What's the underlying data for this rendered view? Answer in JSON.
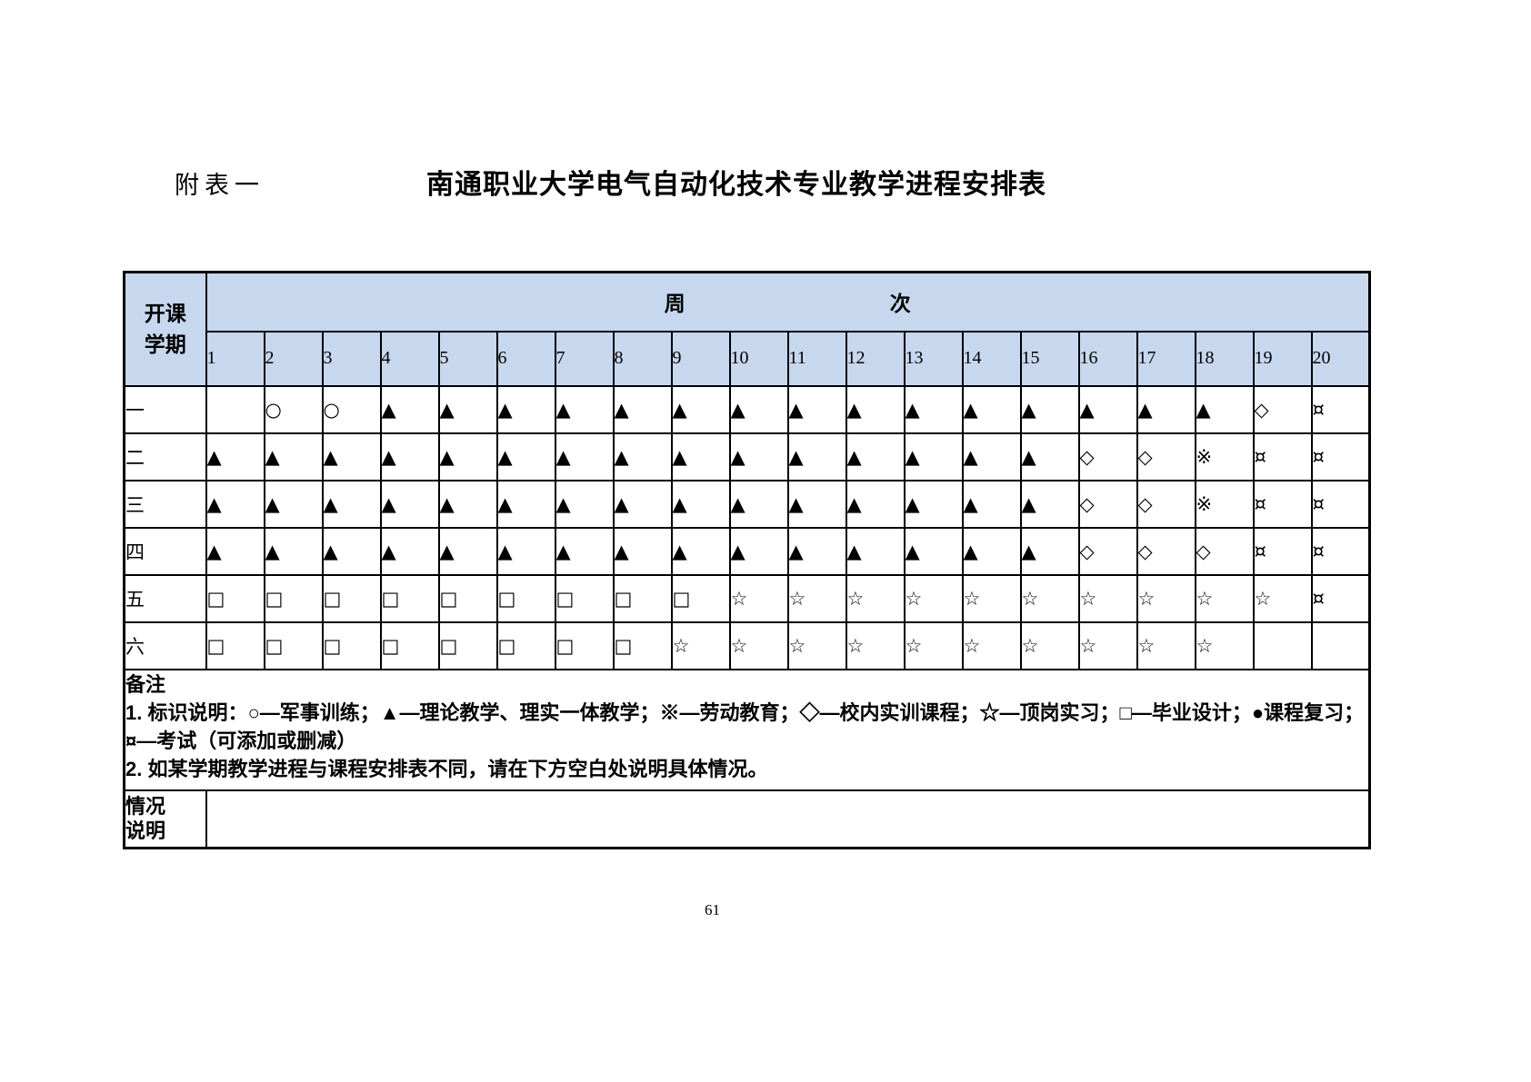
{
  "page": {
    "appendix_label": "附表一",
    "title": "南通职业大学电气自动化技术专业教学进程安排表",
    "page_number": "61"
  },
  "colors": {
    "header_bg": "#c7d7ee",
    "border": "#000000",
    "page_bg": "#ffffff"
  },
  "table": {
    "corner_header": "开课\n学期",
    "week_header_left": "周",
    "week_header_right": "次",
    "week_numbers": [
      "1",
      "2",
      "3",
      "4",
      "5",
      "6",
      "7",
      "8",
      "9",
      "10",
      "11",
      "12",
      "13",
      "14",
      "15",
      "16",
      "17",
      "18",
      "19",
      "20"
    ],
    "rows": [
      {
        "semester": "一",
        "cells": [
          "",
          "○",
          "○",
          "▲",
          "▲",
          "▲",
          "▲",
          "▲",
          "▲",
          "▲",
          "▲",
          "▲",
          "▲",
          "▲",
          "▲",
          "▲",
          "▲",
          "▲",
          "◇",
          "¤"
        ]
      },
      {
        "semester": "二",
        "cells": [
          "▲",
          "▲",
          "▲",
          "▲",
          "▲",
          "▲",
          "▲",
          "▲",
          "▲",
          "▲",
          "▲",
          "▲",
          "▲",
          "▲",
          "▲",
          "◇",
          "◇",
          "※",
          "¤",
          "¤"
        ]
      },
      {
        "semester": "三",
        "cells": [
          "▲",
          "▲",
          "▲",
          "▲",
          "▲",
          "▲",
          "▲",
          "▲",
          "▲",
          "▲",
          "▲",
          "▲",
          "▲",
          "▲",
          "▲",
          "◇",
          "◇",
          "※",
          "¤",
          "¤"
        ]
      },
      {
        "semester": "四",
        "cells": [
          "▲",
          "▲",
          "▲",
          "▲",
          "▲",
          "▲",
          "▲",
          "▲",
          "▲",
          "▲",
          "▲",
          "▲",
          "▲",
          "▲",
          "▲",
          "◇",
          "◇",
          "◇",
          "¤",
          "¤"
        ]
      },
      {
        "semester": "五",
        "cells": [
          "□",
          "□",
          "□",
          "□",
          "□",
          "□",
          "□",
          "□",
          "□",
          "☆",
          "☆",
          "☆",
          "☆",
          "☆",
          "☆",
          "☆",
          "☆",
          "☆",
          "☆",
          "¤"
        ]
      },
      {
        "semester": "六",
        "cells": [
          "□",
          "□",
          "□",
          "□",
          "□",
          "□",
          "□",
          "□",
          "☆",
          "☆",
          "☆",
          "☆",
          "☆",
          "☆",
          "☆",
          "☆",
          "☆",
          "☆",
          "",
          ""
        ]
      }
    ],
    "notes": {
      "label": "备注",
      "line1": "1. 标识说明：○—军事训练；▲—理论教学、理实一体教学；※—劳动教育；◇—校内实训课程；☆—顶岗实习；□—毕业设计；●课程复习；",
      "line2": "¤—考试（可添加或删减）",
      "line3": "2. 如某学期教学进程与课程安排表不同，请在下方空白处说明具体情况。"
    },
    "situation_label": "情况\n说明",
    "situation_value": ""
  }
}
